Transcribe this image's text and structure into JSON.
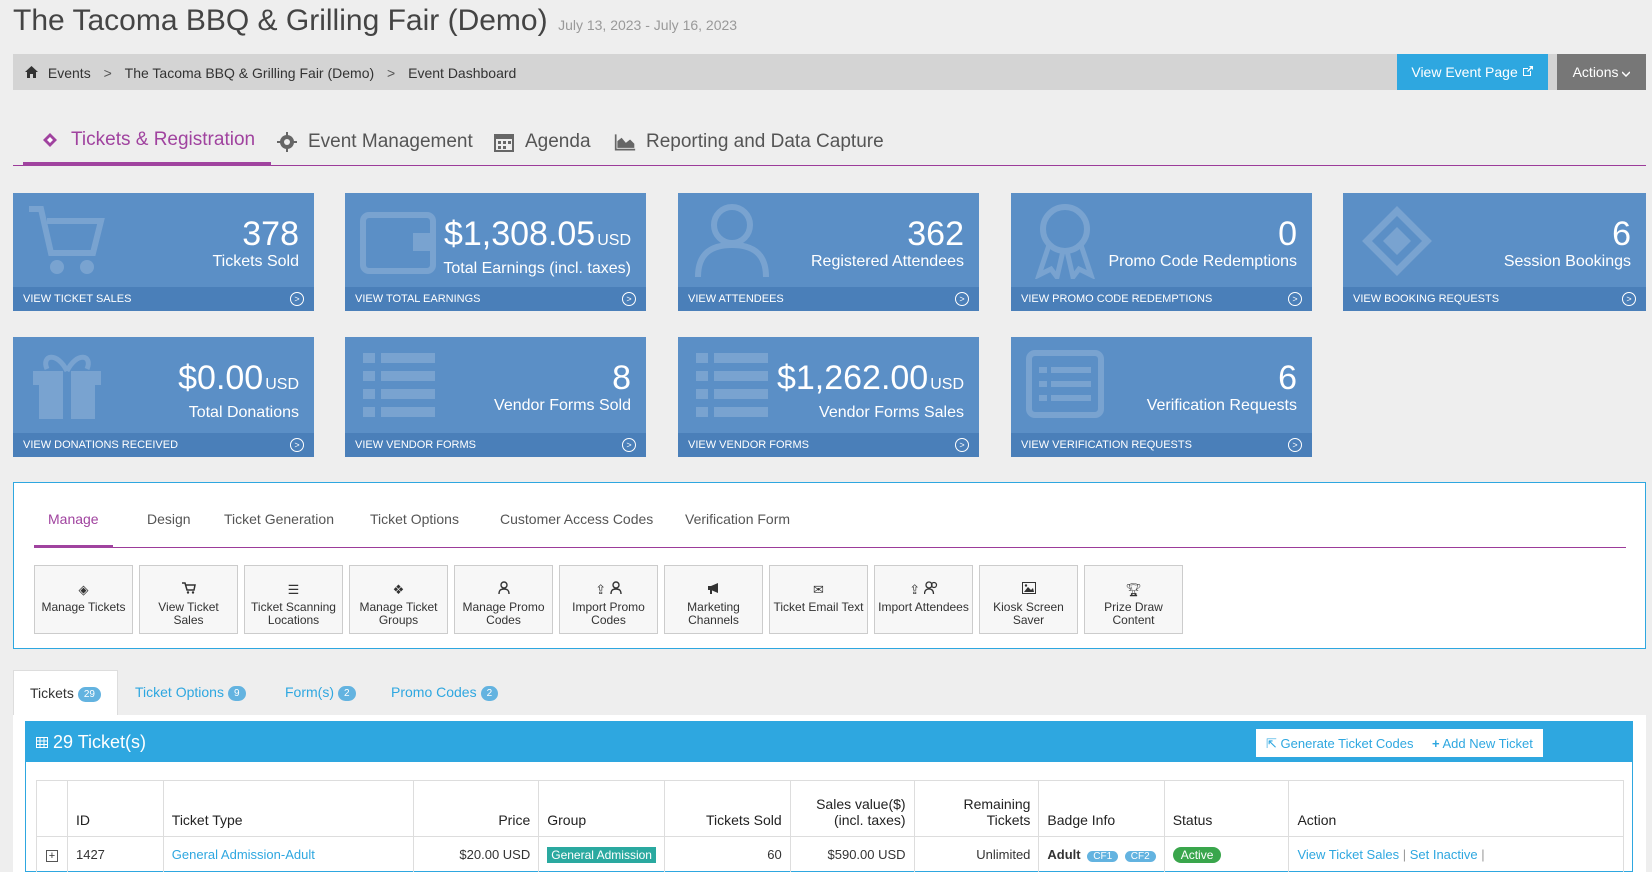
{
  "header": {
    "title": "The Tacoma BBQ & Grilling Fair (Demo)",
    "dates": "July 13, 2023 - July 16, 2023"
  },
  "breadcrumb": {
    "items": [
      "Events",
      "The Tacoma BBQ & Grilling Fair (Demo)",
      "Event Dashboard"
    ],
    "separator": ">"
  },
  "buttons": {
    "view_event_page": "View Event Page",
    "actions": "Actions"
  },
  "top_tabs": [
    {
      "label": "Tickets & Registration",
      "icon": "ticket-icon",
      "active": true
    },
    {
      "label": "Event Management",
      "icon": "gear-icon"
    },
    {
      "label": "Agenda",
      "icon": "calendar-icon"
    },
    {
      "label": "Reporting and Data Capture",
      "icon": "area-chart-icon"
    }
  ],
  "cards": [
    {
      "value": "378",
      "currency": "",
      "label": "Tickets Sold",
      "footer": "VIEW TICKET SALES",
      "icon": "cart-icon"
    },
    {
      "value": "$1,308.05",
      "currency": "USD",
      "label": "Total Earnings (incl. taxes)",
      "footer": "VIEW TOTAL EARNINGS",
      "icon": "wallet-icon"
    },
    {
      "value": "362",
      "currency": "",
      "label": "Registered Attendees",
      "footer": "VIEW ATTENDEES",
      "icon": "user-icon"
    },
    {
      "value": "0",
      "currency": "",
      "label": "Promo Code Redemptions",
      "footer": "VIEW PROMO CODE REDEMPTIONS",
      "icon": "ribbon-icon"
    },
    {
      "value": "6",
      "currency": "",
      "label": "Session Bookings",
      "footer": "VIEW BOOKING REQUESTS",
      "icon": "ticket-icon"
    },
    {
      "value": "$0.00",
      "currency": "USD",
      "label": "Total Donations",
      "footer": "VIEW DONATIONS RECEIVED",
      "icon": "gift-icon"
    },
    {
      "value": "8",
      "currency": "",
      "label": "Vendor Forms Sold",
      "footer": "VIEW VENDOR FORMS",
      "icon": "list-icon"
    },
    {
      "value": "$1,262.00",
      "currency": "USD",
      "label": "Vendor Forms Sales",
      "footer": "VIEW VENDOR FORMS",
      "icon": "list-icon"
    },
    {
      "value": "6",
      "currency": "",
      "label": "Verification Requests",
      "footer": "VIEW VERIFICATION REQUESTS",
      "icon": "form-icon"
    }
  ],
  "sub_tabs": [
    "Manage",
    "Design",
    "Ticket Generation",
    "Ticket Options",
    "Customer Access Codes",
    "Verification Form"
  ],
  "tools": [
    {
      "label": "Manage Tickets",
      "icon": "ticket-icon"
    },
    {
      "label": "View Ticket Sales",
      "icon": "cart-icon"
    },
    {
      "label": "Ticket Scanning Locations",
      "icon": "list-icon"
    },
    {
      "label": "Manage Ticket Groups",
      "icon": "cubes-icon"
    },
    {
      "label": "Manage Promo Codes",
      "icon": "user-icon"
    },
    {
      "label": "Import Promo Codes",
      "icon": "upload-user-icon"
    },
    {
      "label": "Marketing Channels",
      "icon": "megaphone-icon"
    },
    {
      "label": "Ticket Email Text",
      "icon": "envelope-icon"
    },
    {
      "label": "Import Attendees",
      "icon": "upload-users-icon"
    },
    {
      "label": "Kiosk Screen Saver",
      "icon": "image-icon"
    },
    {
      "label": "Prize Draw Content",
      "icon": "trophy-icon"
    }
  ],
  "bottom_tabs": [
    {
      "label": "Tickets",
      "count": "29",
      "active": true
    },
    {
      "label": "Ticket Options",
      "count": "9"
    },
    {
      "label": "Form(s)",
      "count": "2"
    },
    {
      "label": "Promo Codes",
      "count": "2"
    }
  ],
  "tickets_panel": {
    "title": "29 Ticket(s)",
    "generate_codes": "Generate Ticket Codes",
    "add_new": "Add New Ticket"
  },
  "table": {
    "headers": [
      "",
      "ID",
      "Ticket Type",
      "Price",
      "Group",
      "Tickets Sold",
      "Sales value($) (incl. taxes)",
      "Remaining Tickets",
      "Badge Info",
      "Status",
      "Action"
    ],
    "rows": [
      {
        "expand": "+",
        "id": "1427",
        "type": "General Admission-Adult",
        "price": "$20.00 USD",
        "group": "General Admission",
        "sold": "60",
        "sales": "$590.00 USD",
        "remaining": "Unlimited",
        "badge": "Adult",
        "badge_tags": [
          "CF1",
          "CF2"
        ],
        "status": "Active",
        "actions": [
          "View Ticket Sales",
          "Set Inactive"
        ]
      }
    ]
  },
  "colors": {
    "accent": "#a0439f",
    "primary": "#2ea7e0",
    "card": "#5b8fc6",
    "card_footer": "#4a7fb9",
    "active_status": "#3aa64c"
  }
}
